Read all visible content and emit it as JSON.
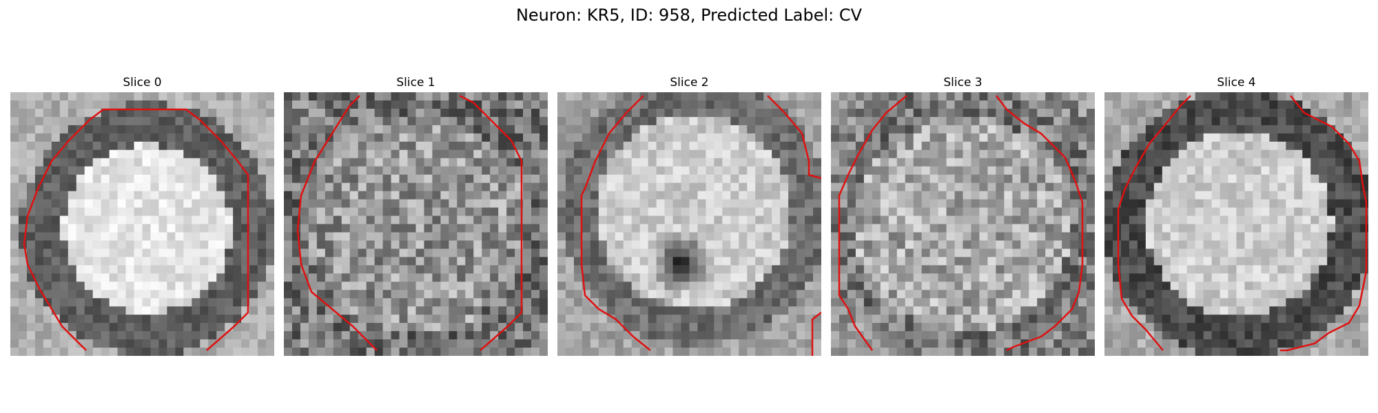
{
  "figure": {
    "title": "Neuron: KR5, ID: 958, Predicted Label: CV"
  },
  "panels": [
    {
      "title": "Slice 0"
    },
    {
      "title": "Slice 1"
    },
    {
      "title": "Slice 2"
    },
    {
      "title": "Slice 3"
    },
    {
      "title": "Slice 4"
    }
  ],
  "colors": {
    "contour": "#e01010"
  }
}
